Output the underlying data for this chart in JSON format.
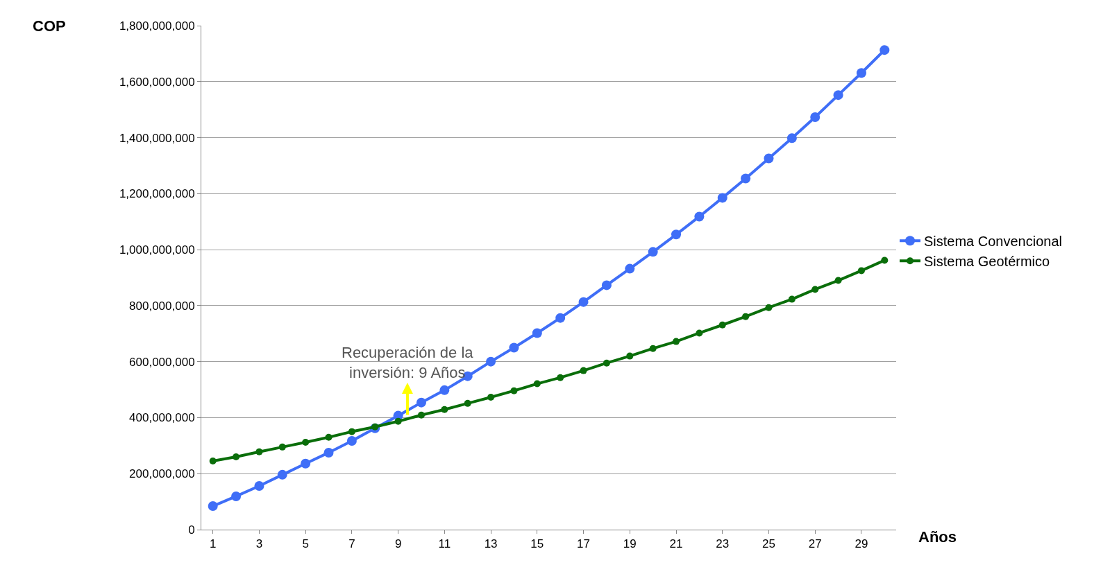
{
  "chart_data": {
    "type": "line",
    "xlabel": "Años",
    "ylabel": "COP",
    "x": [
      1,
      2,
      3,
      4,
      5,
      6,
      7,
      8,
      9,
      10,
      11,
      12,
      13,
      14,
      15,
      16,
      17,
      18,
      19,
      20,
      21,
      22,
      23,
      24,
      25,
      26,
      27,
      28,
      29,
      30
    ],
    "series": [
      {
        "name": "Sistema Convencional",
        "color": "#3f6ef7",
        "values": [
          84000000,
          119000000,
          156000000,
          196000000,
          236000000,
          275000000,
          317000000,
          362000000,
          407000000,
          454000000,
          498000000,
          548000000,
          600000000,
          650000000,
          702000000,
          756000000,
          813000000,
          873000000,
          932000000,
          992000000,
          1054000000,
          1118000000,
          1185000000,
          1254000000,
          1326000000,
          1398000000,
          1473000000,
          1552000000,
          1631000000,
          1713000000
        ]
      },
      {
        "name": "Sistema Geotérmico",
        "color": "#0a6e0a",
        "values": [
          245000000,
          260000000,
          278000000,
          295000000,
          312000000,
          330000000,
          350000000,
          367000000,
          387000000,
          409000000,
          429000000,
          451000000,
          473000000,
          496000000,
          521000000,
          543000000,
          568000000,
          595000000,
          620000000,
          647000000,
          672000000,
          702000000,
          731000000,
          761000000,
          793000000,
          823000000,
          858000000,
          890000000,
          925000000,
          962000000
        ]
      }
    ],
    "xlim": [
      0.5,
      30.5
    ],
    "xticks": [
      1,
      3,
      5,
      7,
      9,
      11,
      13,
      15,
      17,
      19,
      21,
      23,
      25,
      27,
      29
    ],
    "ylim": [
      0,
      1800000000
    ],
    "yticks": [
      0,
      {
        "value": 200000000,
        "label": "200,000,000"
      },
      {
        "value": 400000000,
        "label": "400,000,000"
      },
      {
        "value": 600000000,
        "label": "600,000,000"
      },
      {
        "value": 800000000,
        "label": "800,000,000"
      },
      {
        "value": 1000000000,
        "label": "1,000,000,000"
      },
      {
        "value": 1200000000,
        "label": "1,200,000,000"
      },
      {
        "value": 1400000000,
        "label": "1,400,000,000"
      },
      {
        "value": 1600000000,
        "label": "1,600,000,000"
      },
      {
        "value": 1800000000,
        "label": "1,800,000,000"
      }
    ],
    "annotations": [
      {
        "text": "Recuperación de la\ninversión: 9 Años",
        "x": 9.4,
        "y": 400000000
      }
    ],
    "grid": "y",
    "legend": "right",
    "marker": "circle",
    "line_style": "solid"
  }
}
